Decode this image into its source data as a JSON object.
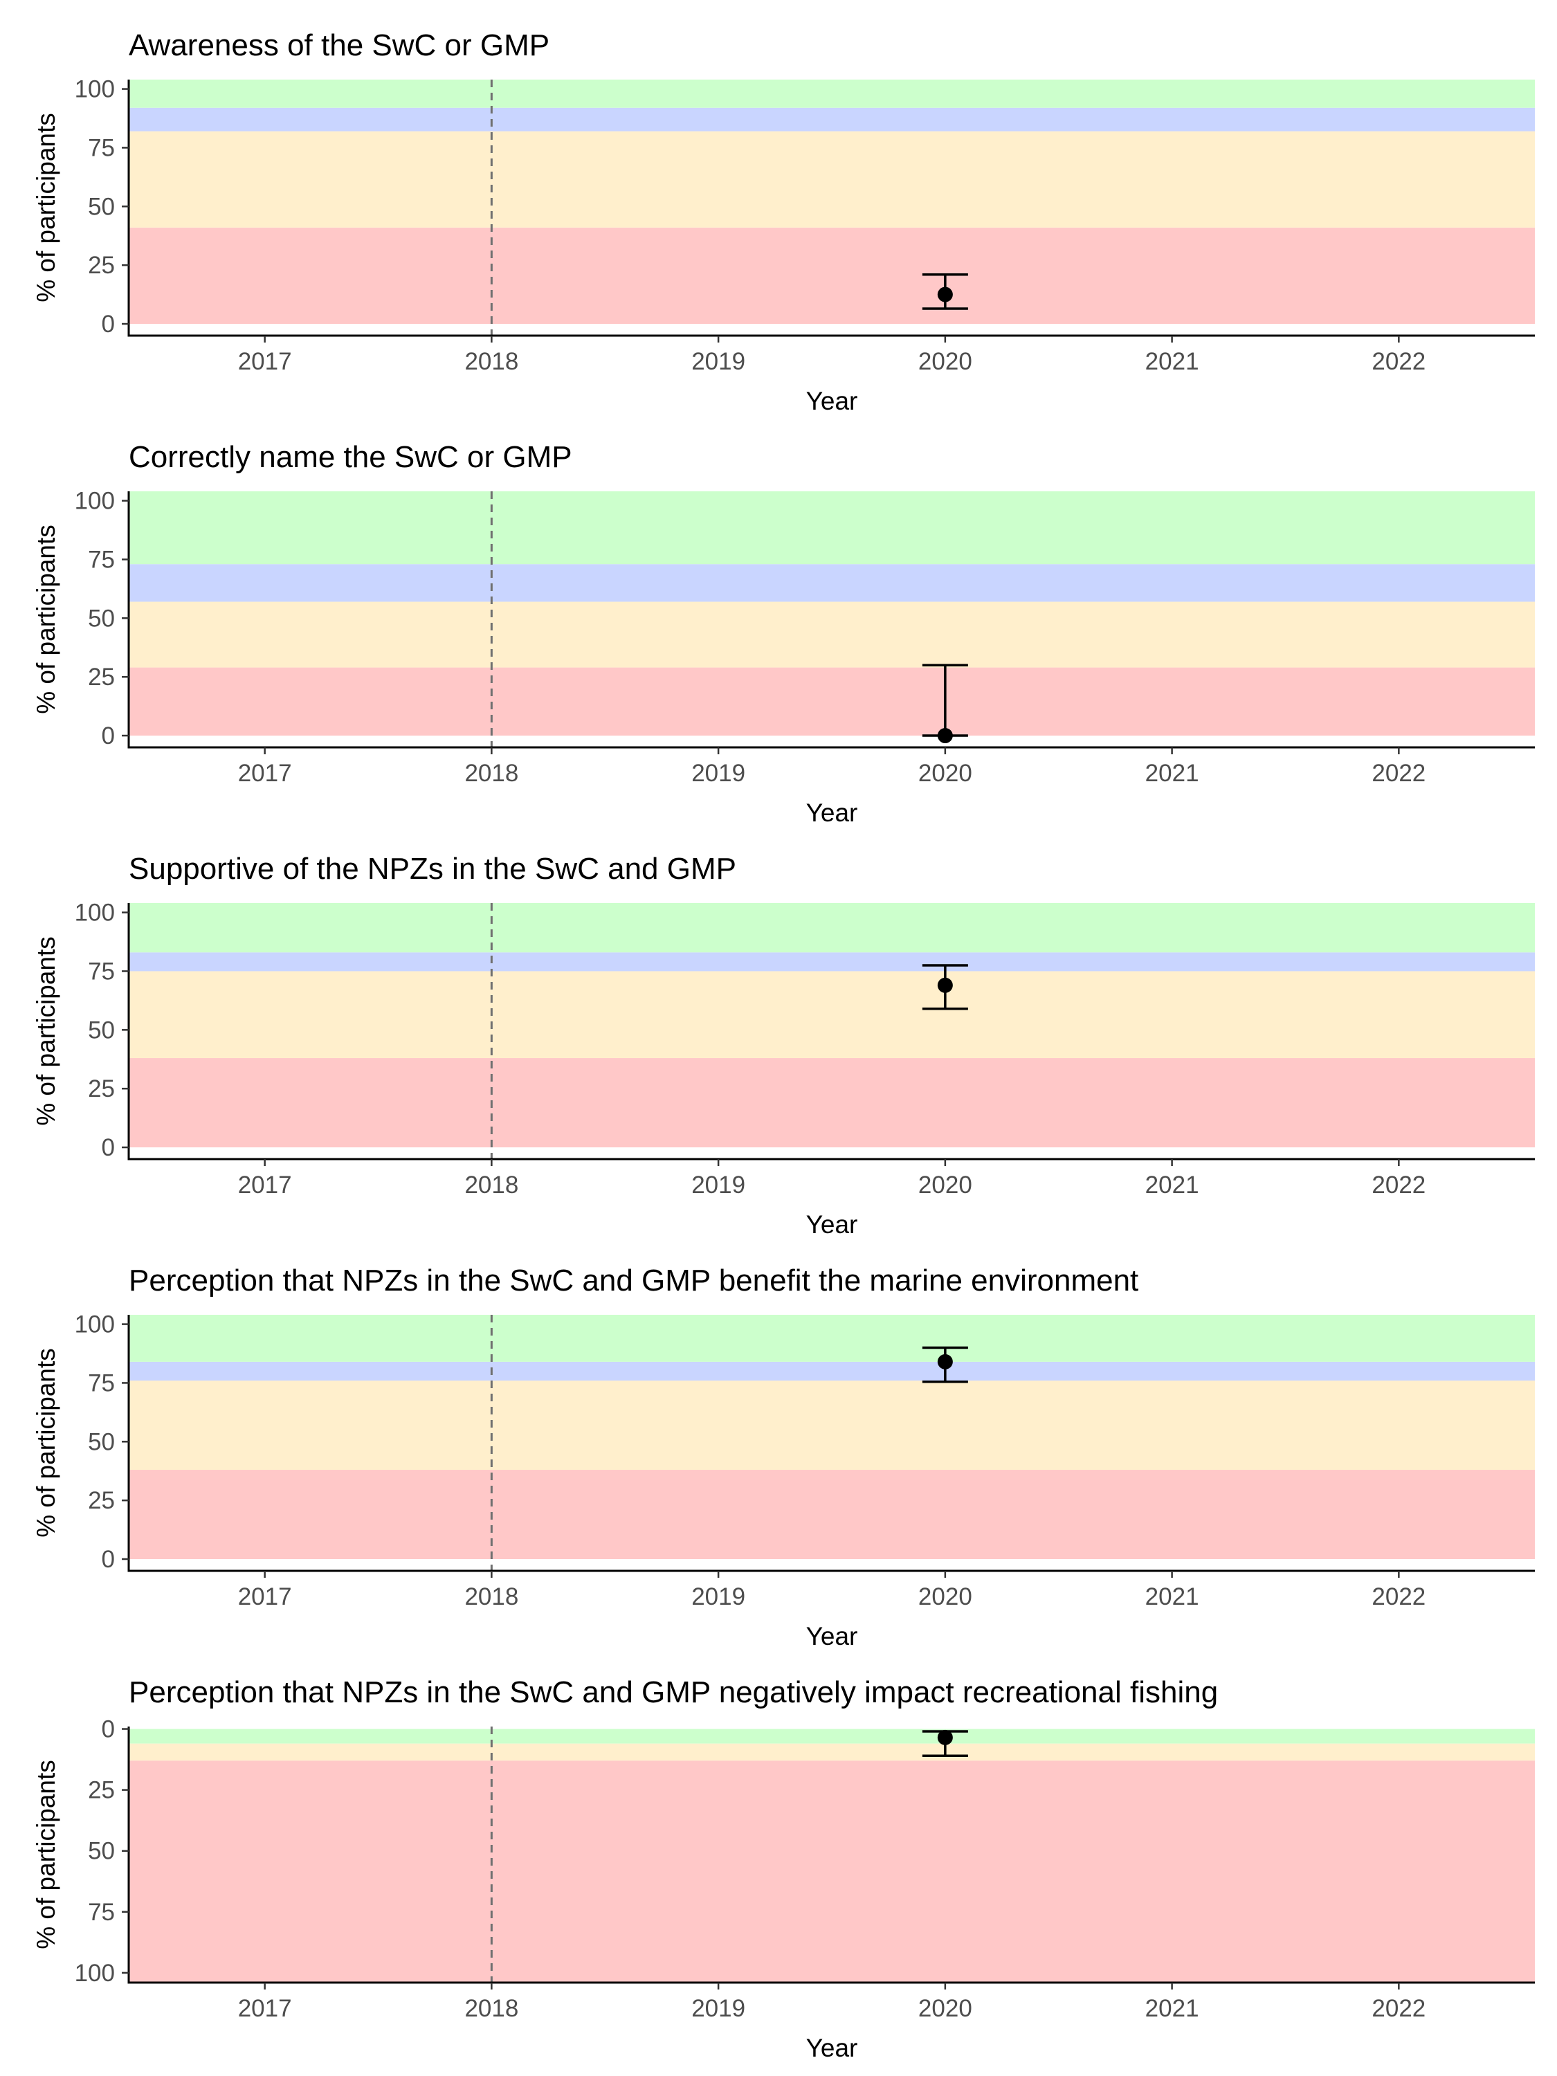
{
  "colors": {
    "good": "#ccffcc",
    "fair": "#c9d5ff",
    "poor": "#ffefcc",
    "very_poor": "#ffc8c8",
    "marker": "#000000",
    "reference_line": "#707070",
    "tick_text": "#4d4d4d"
  },
  "chart_data": [
    {
      "type": "scatter",
      "title": "Awareness of the SwC or GMP",
      "xlabel": "Year",
      "ylabel": "% of participants",
      "x_ticks": [
        "2017",
        "2018",
        "2019",
        "2020",
        "2021",
        "2022"
      ],
      "y_ticks": [
        "0",
        "25",
        "50",
        "75",
        "100"
      ],
      "xlim": [
        2016.4,
        2022.6
      ],
      "ylim": [
        -5,
        104
      ],
      "reversed_y": false,
      "reference_x": 2018,
      "bands": [
        {
          "status": "very_poor",
          "from": 0,
          "to": 41
        },
        {
          "status": "poor",
          "from": 41,
          "to": 82
        },
        {
          "status": "fair",
          "from": 82,
          "to": 92
        },
        {
          "status": "good",
          "from": 92,
          "to": 104
        }
      ],
      "points": [
        {
          "x": 2020,
          "y": 12.5,
          "ymin": 6.5,
          "ymax": 21
        }
      ]
    },
    {
      "type": "scatter",
      "title": "Correctly name the SwC or GMP",
      "xlabel": "Year",
      "ylabel": "% of participants",
      "x_ticks": [
        "2017",
        "2018",
        "2019",
        "2020",
        "2021",
        "2022"
      ],
      "y_ticks": [
        "0",
        "25",
        "50",
        "75",
        "100"
      ],
      "xlim": [
        2016.4,
        2022.6
      ],
      "ylim": [
        -5,
        104
      ],
      "reversed_y": false,
      "reference_x": 2018,
      "bands": [
        {
          "status": "very_poor",
          "from": 0,
          "to": 29
        },
        {
          "status": "poor",
          "from": 29,
          "to": 57
        },
        {
          "status": "fair",
          "from": 57,
          "to": 73
        },
        {
          "status": "good",
          "from": 73,
          "to": 104
        }
      ],
      "points": [
        {
          "x": 2020,
          "y": 0,
          "ymin": 0,
          "ymax": 30
        }
      ]
    },
    {
      "type": "scatter",
      "title": "Supportive of the NPZs in the SwC and GMP",
      "xlabel": "Year",
      "ylabel": "% of participants",
      "x_ticks": [
        "2017",
        "2018",
        "2019",
        "2020",
        "2021",
        "2022"
      ],
      "y_ticks": [
        "0",
        "25",
        "50",
        "75",
        "100"
      ],
      "xlim": [
        2016.4,
        2022.6
      ],
      "ylim": [
        -5,
        104
      ],
      "reversed_y": false,
      "reference_x": 2018,
      "bands": [
        {
          "status": "very_poor",
          "from": 0,
          "to": 38
        },
        {
          "status": "poor",
          "from": 38,
          "to": 75
        },
        {
          "status": "fair",
          "from": 75,
          "to": 83
        },
        {
          "status": "good",
          "from": 83,
          "to": 104
        }
      ],
      "points": [
        {
          "x": 2020,
          "y": 69,
          "ymin": 59,
          "ymax": 77.5
        }
      ]
    },
    {
      "type": "scatter",
      "title": "Perception that NPZs in the SwC and GMP benefit the marine environment",
      "xlabel": "Year",
      "ylabel": "% of participants",
      "x_ticks": [
        "2017",
        "2018",
        "2019",
        "2020",
        "2021",
        "2022"
      ],
      "y_ticks": [
        "0",
        "25",
        "50",
        "75",
        "100"
      ],
      "xlim": [
        2016.4,
        2022.6
      ],
      "ylim": [
        -5,
        104
      ],
      "reversed_y": false,
      "reference_x": 2018,
      "bands": [
        {
          "status": "very_poor",
          "from": 0,
          "to": 38
        },
        {
          "status": "poor",
          "from": 38,
          "to": 76
        },
        {
          "status": "fair",
          "from": 76,
          "to": 84
        },
        {
          "status": "good",
          "from": 84,
          "to": 104
        }
      ],
      "points": [
        {
          "x": 2020,
          "y": 84,
          "ymin": 75.5,
          "ymax": 90
        }
      ]
    },
    {
      "type": "scatter",
      "title": "Perception that NPZs in the SwC and GMP negatively impact recreational fishing",
      "xlabel": "Year",
      "ylabel": "% of participants",
      "x_ticks": [
        "2017",
        "2018",
        "2019",
        "2020",
        "2021",
        "2022"
      ],
      "y_ticks": [
        "0",
        "25",
        "50",
        "75",
        "100"
      ],
      "xlim": [
        2016.4,
        2022.6
      ],
      "ylim": [
        -1,
        104
      ],
      "reversed_y": true,
      "reference_x": 2018,
      "bands": [
        {
          "status": "good",
          "from": 0,
          "to": 6
        },
        {
          "status": "poor",
          "from": 6,
          "to": 13
        },
        {
          "status": "very_poor",
          "from": 13,
          "to": 104
        }
      ],
      "points": [
        {
          "x": 2020,
          "y": 3.5,
          "ymin": 1,
          "ymax": 11
        }
      ]
    }
  ]
}
